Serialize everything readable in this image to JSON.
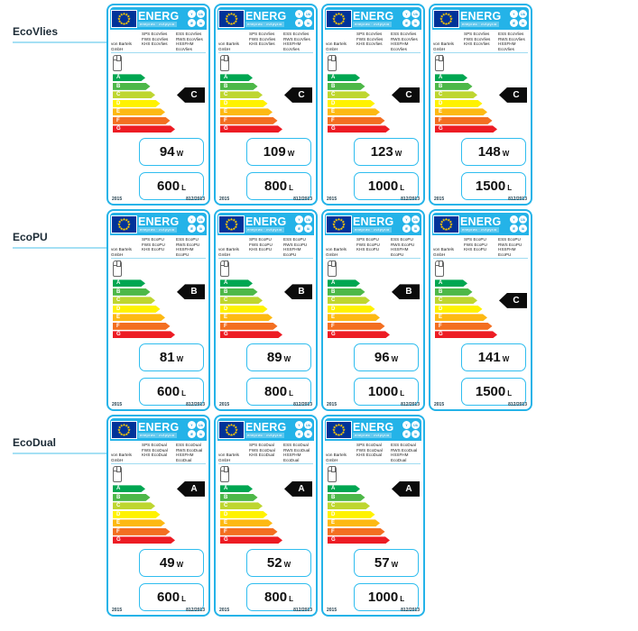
{
  "common": {
    "brand": "ENERG",
    "subtitle": "енергия · ενέργεια",
    "badges": [
      "Y",
      "IJA",
      "IE",
      "IA"
    ],
    "supplier": "von Bartels GmbH",
    "scale": [
      {
        "grade": "A",
        "color": "#00a651"
      },
      {
        "grade": "B",
        "color": "#4db848"
      },
      {
        "grade": "C",
        "color": "#bed630"
      },
      {
        "grade": "D",
        "color": "#fff200"
      },
      {
        "grade": "E",
        "color": "#fdb913"
      },
      {
        "grade": "F",
        "color": "#f36f21"
      },
      {
        "grade": "G",
        "color": "#ed1c24"
      }
    ],
    "unit_watts": "W",
    "unit_liters": "L",
    "year": "2015",
    "regulation": "812/2013",
    "accent_color": "#24b3e8",
    "flag_color": "#003399",
    "star_color": "#ffcc00"
  },
  "groups": [
    {
      "name": "EcoVlies",
      "model_lines": [
        [
          "SPS EcoVlies",
          "ESS EcoVlies"
        ],
        [
          "FWS EcoVlies",
          "RWS EcoVlies"
        ],
        [
          "KHS EcoVlies",
          "HSSFHM EcoVlies"
        ]
      ],
      "labels": [
        {
          "class": "C",
          "watts": "94",
          "liters": "600"
        },
        {
          "class": "C",
          "watts": "109",
          "liters": "800"
        },
        {
          "class": "C",
          "watts": "123",
          "liters": "1000"
        },
        {
          "class": "C",
          "watts": "148",
          "liters": "1500"
        }
      ]
    },
    {
      "name": "EcoPU",
      "model_lines": [
        [
          "SPS EcoPU",
          "ESS EcoPU"
        ],
        [
          "FWS EcoPU",
          "RWS EcoPU"
        ],
        [
          "KHS EcoPU",
          "HSSFHM EcoPU"
        ]
      ],
      "labels": [
        {
          "class": "B",
          "watts": "81",
          "liters": "600"
        },
        {
          "class": "B",
          "watts": "89",
          "liters": "800"
        },
        {
          "class": "B",
          "watts": "96",
          "liters": "1000"
        },
        {
          "class": "C",
          "watts": "141",
          "liters": "1500"
        }
      ]
    },
    {
      "name": "EcoDual",
      "model_lines": [
        [
          "SPS EcoDual",
          "ESS EcoDual"
        ],
        [
          "FWS EcoDual",
          "RWS EcoDual"
        ],
        [
          "KHS EcoDual",
          "HSSFHM EcoDual"
        ]
      ],
      "labels": [
        {
          "class": "A",
          "watts": "49",
          "liters": "600"
        },
        {
          "class": "A",
          "watts": "52",
          "liters": "800"
        },
        {
          "class": "A",
          "watts": "57",
          "liters": "1000"
        }
      ]
    }
  ]
}
